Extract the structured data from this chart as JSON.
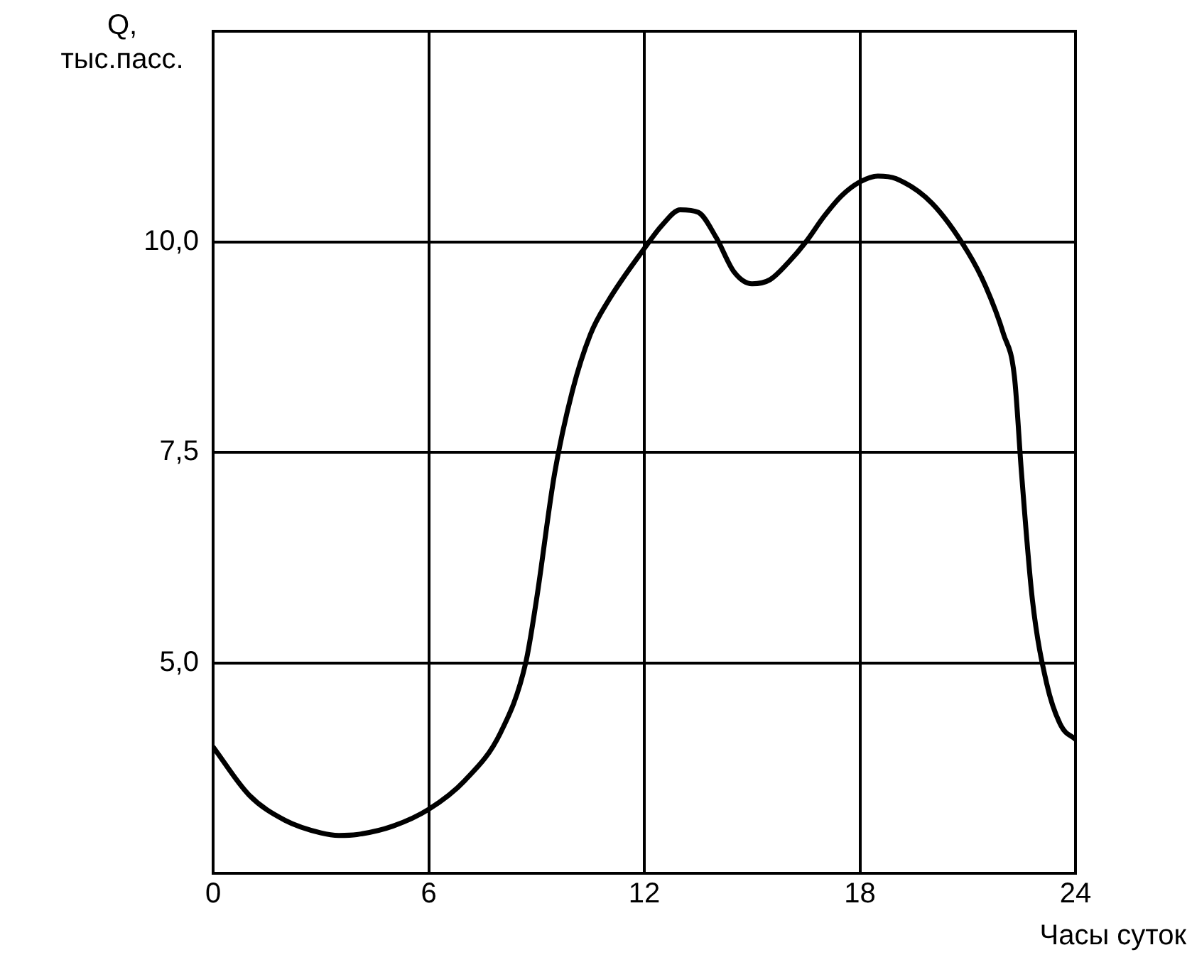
{
  "chart_data": {
    "type": "line",
    "xlabel": "Часы суток",
    "ylabel": "Q, тыс.пасс.",
    "x": [
      0,
      1,
      2,
      3,
      3.5,
      4,
      5,
      6,
      7,
      8,
      8.7,
      9,
      9.5,
      10,
      10.5,
      11,
      12,
      12.5,
      13,
      13.5,
      14,
      14.5,
      15,
      15.5,
      16,
      16.5,
      17,
      17.5,
      18,
      18.5,
      19,
      20,
      21,
      21.5,
      22,
      22.3,
      22.5,
      22.8,
      23.2,
      23.6,
      24
    ],
    "series": [
      {
        "color": "#000000",
        "values": [
          4.0,
          3.43,
          3.13,
          2.98,
          2.95,
          2.96,
          3.06,
          3.26,
          3.6,
          4.17,
          5.0,
          5.75,
          7.24,
          8.23,
          8.9,
          9.3,
          9.92,
          10.2,
          10.38,
          10.35,
          10.05,
          9.64,
          9.5,
          9.55,
          9.75,
          10.0,
          10.3,
          10.55,
          10.71,
          10.78,
          10.75,
          10.46,
          9.88,
          9.47,
          8.9,
          8.4,
          7.24,
          5.75,
          4.75,
          4.25,
          4.09
        ]
      }
    ],
    "xlim": [
      0,
      24
    ],
    "xticks": [
      0,
      6,
      12,
      18,
      24
    ],
    "ylim": [
      2.5,
      12.5
    ],
    "yticks": [
      {
        "value": 2.5,
        "label": null
      },
      {
        "value": 5,
        "label": "5,0"
      },
      {
        "value": 7.5,
        "label": "7,5"
      },
      {
        "value": 10,
        "label": "10,0"
      },
      {
        "value": 12.5,
        "label": null
      }
    ],
    "grid": true,
    "legend": false,
    "marker": "none",
    "line_style": "solid"
  }
}
